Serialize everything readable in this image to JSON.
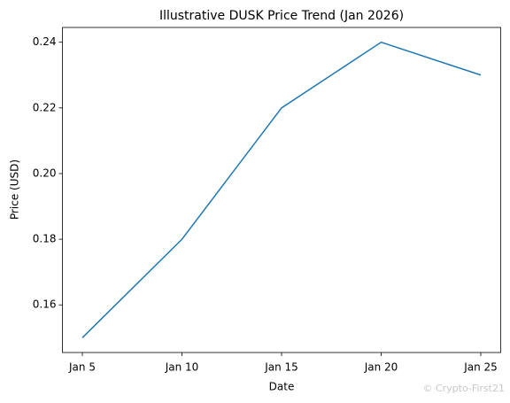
{
  "chart_data": {
    "type": "line",
    "title": "Illustrative DUSK Price Trend (Jan 2026)",
    "xlabel": "Date",
    "ylabel": "Price (USD)",
    "categories": [
      "Jan 5",
      "Jan 10",
      "Jan 15",
      "Jan 20",
      "Jan 25"
    ],
    "series": [
      {
        "color": "#1f77b4",
        "values": [
          0.15,
          0.18,
          0.22,
          0.24,
          0.23
        ]
      }
    ],
    "ylim": [
      0.1455,
      0.2445
    ],
    "yticks": [
      0.16,
      0.18,
      {
        "value": 0.2,
        "label": "0.20"
      },
      0.22,
      0.24
    ],
    "watermark": "© Crypto-First21"
  }
}
